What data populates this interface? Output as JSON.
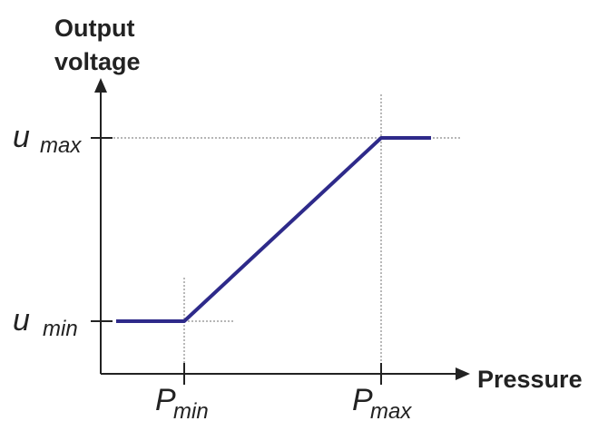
{
  "chart_data": {
    "type": "line",
    "title": "",
    "xlabel": "Pressure",
    "ylabel": [
      "Output",
      "voltage"
    ],
    "x_ticks": [
      {
        "symbol": "P",
        "subscript": "min",
        "value": 1
      },
      {
        "symbol": "P",
        "subscript": "max",
        "value": 3
      }
    ],
    "y_ticks": [
      {
        "symbol": "u",
        "subscript": "min",
        "value": 1
      },
      {
        "symbol": "u",
        "subscript": "max",
        "value": 3
      }
    ],
    "xlim": [
      0,
      3.5
    ],
    "ylim": [
      0,
      3.5
    ],
    "grid": false,
    "reference_lines": true,
    "series": [
      {
        "x": [
          0,
          1,
          3,
          3.5
        ],
        "y": [
          1,
          1,
          3,
          3
        ]
      }
    ]
  },
  "colors": {
    "line": "#2e2a8a",
    "axis": "#222222",
    "guide": "#8a8a8a"
  }
}
